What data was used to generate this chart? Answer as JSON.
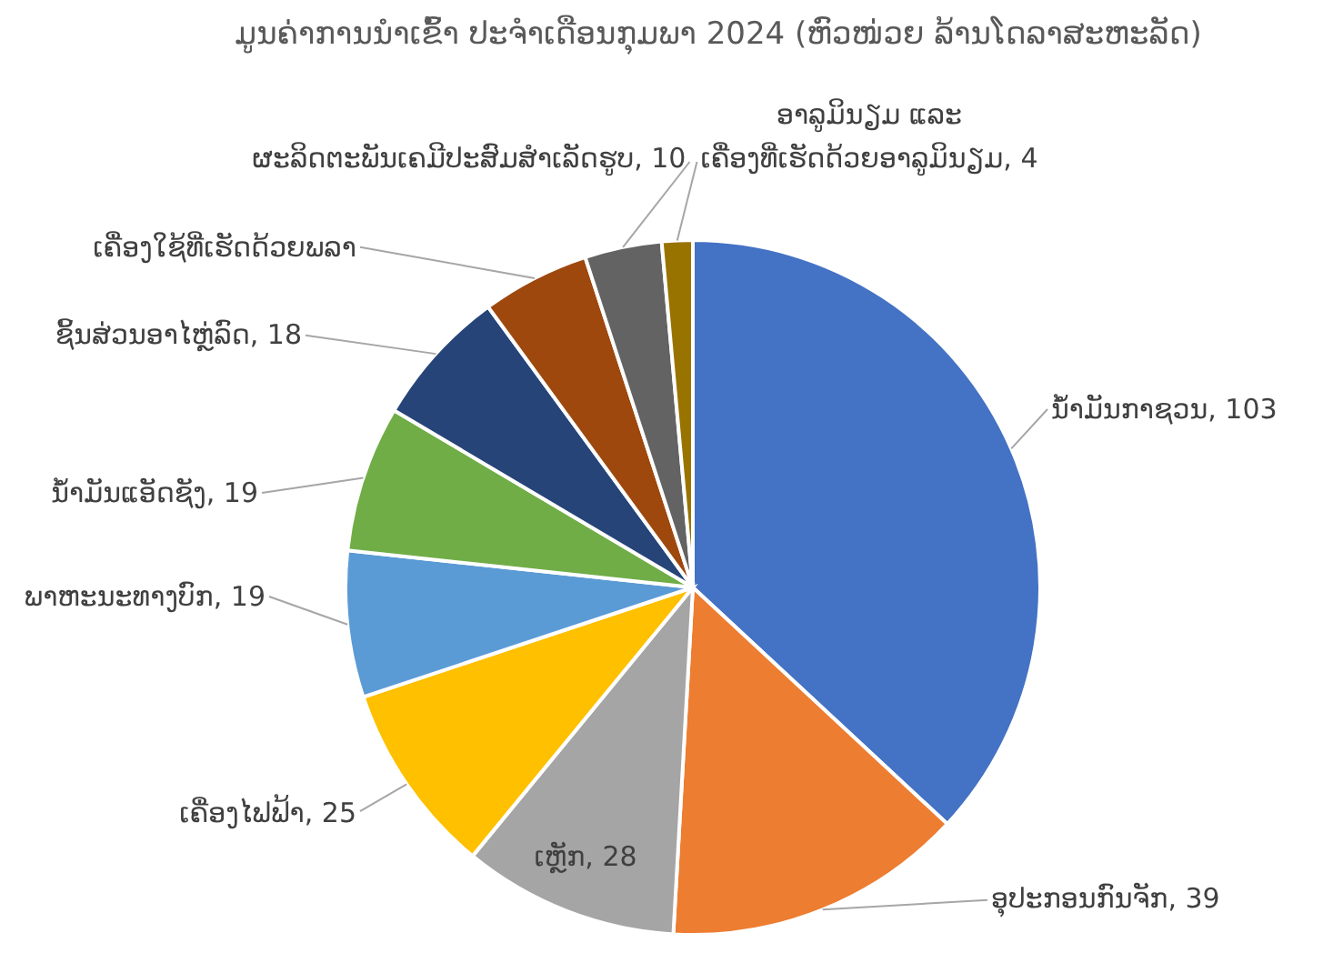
{
  "chart_data": {
    "type": "pie",
    "title": "ມູນຄ່າການນຳເຂົ້າ ປະຈຳເດືອນກຸມພາ 2024 (ຫົວໜ່ວຍ ລ້ານໂດລາສະຫະລັດ)",
    "categories": [
      "ນ້ຳມັນກາຊວນ",
      "ອຸປະກອນກົນຈັກ",
      "ເຫຼັກ",
      "ເຄື່ອງໄຟຟ້າ",
      "ພາຫະນະທາງບົກ",
      "ນ້ຳມັນແອັດຊັງ",
      "ຊິ້ນສ່ວນອາໄຫຼ່ລົດ",
      "ເຄື່ອງໃຊ້ທີ່ເຮັດດ້ວຍພລາ",
      "ຜະລິດຕະພັນເຄມີປະສົມສຳເລັດຮູບ",
      "ອາລູມິນຽມ ແລະ ເຄື່ອງທີ່ເຮັດດ້ວຍອາລູມິນຽມ"
    ],
    "values": [
      103,
      39,
      28,
      25,
      19,
      19,
      18,
      14,
      10,
      4
    ],
    "value_labels": [
      "103",
      "39",
      "28",
      "25",
      "19",
      "19",
      "18",
      null,
      "10",
      "4"
    ],
    "colors": [
      "#4472c4",
      "#ed7d31",
      "#a5a5a5",
      "#ffc000",
      "#5b9bd5",
      "#70ad47",
      "#264478",
      "#9e480e",
      "#636363",
      "#997300"
    ]
  }
}
